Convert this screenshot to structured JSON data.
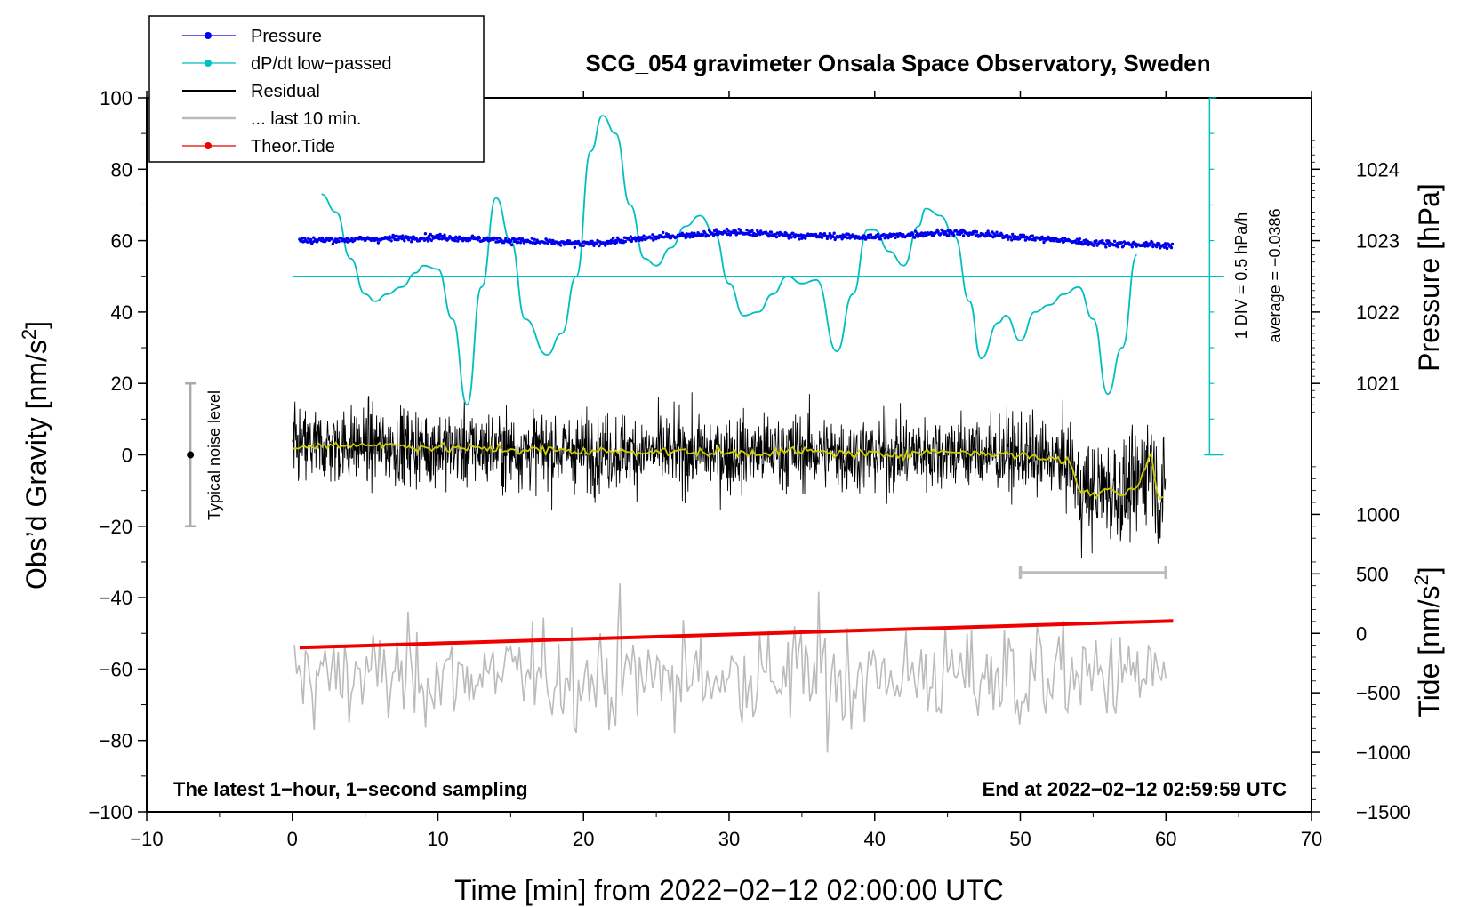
{
  "chart_data": {
    "type": "line",
    "title": "SCG_054 gravimeter Onsala Space Observatory, Sweden",
    "xlabel": "Time [min] from 2022−02−12 02:00:00 UTC",
    "ylabel_left": "Obs’d Gravity [nm/s",
    "ylabel_left_sup": "2",
    "ylabel_left_close": "]",
    "ylabel_right_pressure": "Pressure [hPa]",
    "ylabel_right_tide": "Tide [nm/s",
    "ylabel_right_tide_sup": "2",
    "ylabel_right_tide_close": "]",
    "xlim": [
      -10,
      70
    ],
    "ylim": [
      -100,
      100
    ],
    "x_ticks": [
      "−10",
      "0",
      "10",
      "20",
      "30",
      "40",
      "50",
      "60",
      "70"
    ],
    "y_ticks": [
      "100",
      "80",
      "60",
      "40",
      "20",
      "0",
      "−20",
      "−40",
      "−60",
      "−80",
      "−100"
    ],
    "pressure_ticks": [
      "1024",
      "1023",
      "1022",
      "1021"
    ],
    "pressure_tick_values": [
      1024,
      1023,
      1022,
      1021
    ],
    "pressure_scale": {
      "hPa_at_gravity_60": 1023,
      "gravity_per_hPa": 20
    },
    "tide_ticks": [
      "1000",
      "500",
      "0",
      "−500",
      "−1000",
      "−1500"
    ],
    "tide_tick_values": [
      1000,
      500,
      0,
      -500,
      -1000,
      -1500
    ],
    "tide_scale": {
      "tide_at_gravity_0": 1500,
      "tide_at_gravity_neg100": -1500
    },
    "legend": [
      {
        "label": "Pressure",
        "color": "#0000ee",
        "marker": true
      },
      {
        "label": "dP/dt low−passed",
        "color": "#00bfbf",
        "marker": true
      },
      {
        "label": "Residual",
        "color": "#000000",
        "marker": false
      },
      {
        "label": "... last 10 min.",
        "color": "#bbbbbb",
        "marker": false
      },
      {
        "label": "Theor.Tide",
        "color": "#ee0000",
        "marker": true
      }
    ],
    "annotations": {
      "bottom_left": "The latest 1−hour, 1−second sampling",
      "bottom_right": "End at 2022−02−12 02:59:59 UTC",
      "noise_label": "Typical noise level",
      "dpdt_scale_label": "1 DIV = 0.5 hPa/h",
      "dpdt_average_label": "average = −0.0386"
    },
    "noise_bar": {
      "x": -7,
      "center": 0,
      "half_range": 20
    },
    "last10_bracket": {
      "x_start": 50,
      "x_end": 60,
      "y": -33
    },
    "dpdt_reference_line": {
      "y": 50,
      "x_start": 0,
      "x_end": 64
    },
    "dpdt_scale_axis": {
      "x": 63,
      "y_bottom": 0,
      "y_top": 100
    },
    "series": [
      {
        "name": "dP/dt low−passed",
        "color": "#00bfbf",
        "x": [
          2.0,
          3.0,
          4.0,
          5.0,
          5.7,
          6.5,
          7.5,
          8.5,
          9.0,
          10.0,
          11.0,
          12.0,
          13.0,
          14.0,
          15.0,
          16.0,
          17.5,
          18.5,
          19.5,
          20.5,
          21.3,
          22.2,
          23.2,
          24.2,
          25.0,
          26.0,
          27.0,
          28.0,
          29.0,
          30.0,
          31.0,
          32.0,
          33.0,
          34.0,
          35.0,
          36.0,
          37.4,
          38.5,
          39.5,
          40.0,
          41.0,
          42.0,
          43.0,
          43.5,
          44.5,
          45.5,
          46.5,
          47.3,
          48.5,
          49.0,
          50.0,
          51.0,
          52.0,
          53.0,
          54.0,
          55.0,
          56.0,
          57.0,
          58.0
        ],
        "values": [
          73,
          68,
          55,
          45,
          43,
          45,
          47,
          51,
          53,
          52,
          38,
          14,
          47,
          72,
          60,
          38,
          28,
          34,
          50,
          85,
          95,
          90,
          70,
          55,
          53,
          58,
          64,
          67,
          62,
          48,
          39,
          40,
          45,
          50,
          48,
          49,
          29,
          45,
          63,
          63,
          57,
          53,
          64,
          69,
          67,
          61,
          43,
          27,
          37,
          39,
          32,
          40,
          42,
          45,
          47,
          38,
          17,
          30,
          56
        ]
      },
      {
        "name": "Pressure",
        "color": "#0000ee",
        "x": [
          0.5,
          5,
          10,
          15,
          20,
          25,
          30,
          35,
          40,
          45,
          50,
          55,
          60.5
        ],
        "hPa": [
          1023.0,
          1023.02,
          1023.05,
          1023.0,
          1022.95,
          1023.05,
          1023.12,
          1023.07,
          1023.05,
          1023.12,
          1023.05,
          1022.97,
          1022.93
        ]
      },
      {
        "name": "Theor.Tide",
        "color": "#ee0000",
        "x": [
          0.5,
          60.5
        ],
        "values": [
          -54,
          -46.5
        ]
      },
      {
        "name": "Residual smoothed",
        "color": "#cccc00",
        "x": [
          0,
          5,
          10,
          15,
          20,
          25,
          30,
          35,
          40,
          45,
          50,
          52,
          53.5,
          54,
          55,
          56,
          57,
          58,
          59,
          59.5,
          60
        ],
        "values": [
          2,
          3,
          2,
          1.5,
          1,
          1,
          0.5,
          1,
          0,
          1,
          0,
          -1,
          -2,
          -10,
          -11,
          -9,
          -11,
          -9,
          0,
          -13,
          -10
        ]
      }
    ]
  }
}
